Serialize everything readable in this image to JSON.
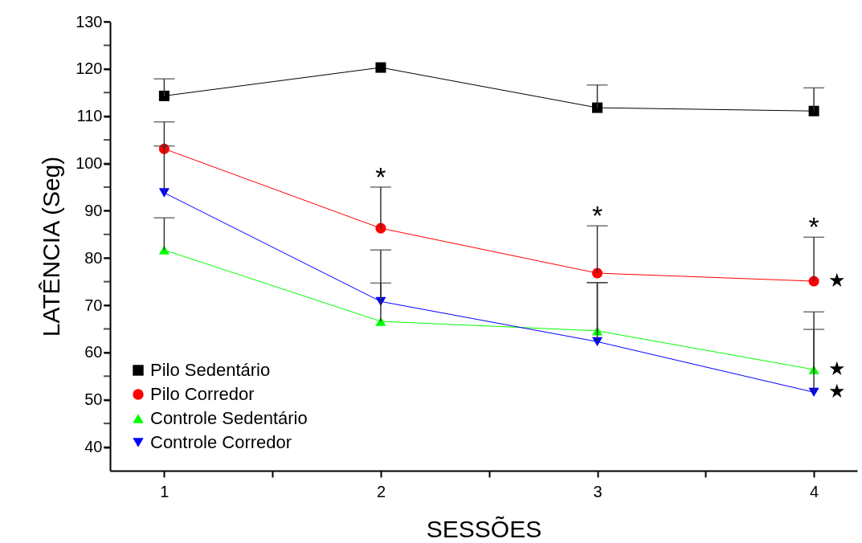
{
  "chart_data": {
    "type": "line",
    "xlabel": "SESSÕES",
    "ylabel": "LATÊNCIA (Seg)",
    "x": [
      1,
      2,
      3,
      4
    ],
    "series": [
      {
        "name": "Pilo Sedentário",
        "color": "#000000",
        "marker": "square",
        "values": [
          114.3,
          120.3,
          111.8,
          111.1
        ],
        "errors": [
          [
            114.3,
            117.9
          ],
          null,
          [
            111.8,
            116.6
          ],
          [
            111.1,
            116.0
          ]
        ]
      },
      {
        "name": "Pilo Corredor",
        "color": "#ff0000",
        "marker": "circle",
        "values": [
          103.1,
          86.3,
          76.8,
          75.1
        ],
        "errors": [
          [
            103.1,
            108.8
          ],
          [
            86.3,
            95.0
          ],
          [
            76.8,
            86.8
          ],
          [
            75.1,
            84.4
          ]
        ]
      },
      {
        "name": "Controle Sedentário",
        "color": "#00ff00",
        "marker": "triangle",
        "values": [
          81.7,
          66.6,
          64.6,
          56.4
        ],
        "errors": [
          [
            81.7,
            88.5
          ],
          [
            66.6,
            81.7
          ],
          [
            64.6,
            74.8
          ],
          [
            56.4,
            68.6
          ]
        ]
      },
      {
        "name": "Controle Corredor",
        "color": "#0000ff",
        "marker": "triangle-down",
        "values": [
          93.8,
          70.8,
          62.3,
          51.6
        ],
        "errors": [
          [
            93.8,
            103.7
          ],
          [
            70.8,
            74.7
          ],
          [
            62.3,
            74.8
          ],
          [
            51.6,
            64.9
          ]
        ]
      }
    ],
    "xlim": [
      0.75,
      4.2
    ],
    "xticks": [
      1,
      {
        "value": 1.5,
        "label": null
      },
      2,
      {
        "value": 2.5,
        "label": null
      },
      3,
      {
        "value": 3.5,
        "label": null
      },
      4
    ],
    "ylim": [
      35,
      130
    ],
    "yticks": [
      40,
      {
        "value": 45,
        "label": null
      },
      50,
      {
        "value": 55,
        "label": null
      },
      60,
      {
        "value": 65,
        "label": null
      },
      70,
      {
        "value": 75,
        "label": null
      },
      80,
      {
        "value": 85,
        "label": null
      },
      90,
      {
        "value": 95,
        "label": null
      },
      100,
      {
        "value": 105,
        "label": null
      },
      110,
      {
        "value": 115,
        "label": null
      },
      120,
      {
        "value": 125,
        "label": null
      },
      130
    ],
    "annotations": [
      {
        "text": "*",
        "x": 2,
        "y": 95.0
      },
      {
        "text": "*",
        "x": 3,
        "y": 86.8
      },
      {
        "text": "*",
        "x": 4,
        "y": 84.4
      },
      {
        "text": "★",
        "x": 4,
        "y": 75.1
      },
      {
        "text": "★",
        "x": 4,
        "y": 56.4
      },
      {
        "text": "★",
        "x": 4,
        "y": 51.6
      }
    ],
    "grid": false,
    "legend": "bottom left",
    "line_style": "solid"
  }
}
